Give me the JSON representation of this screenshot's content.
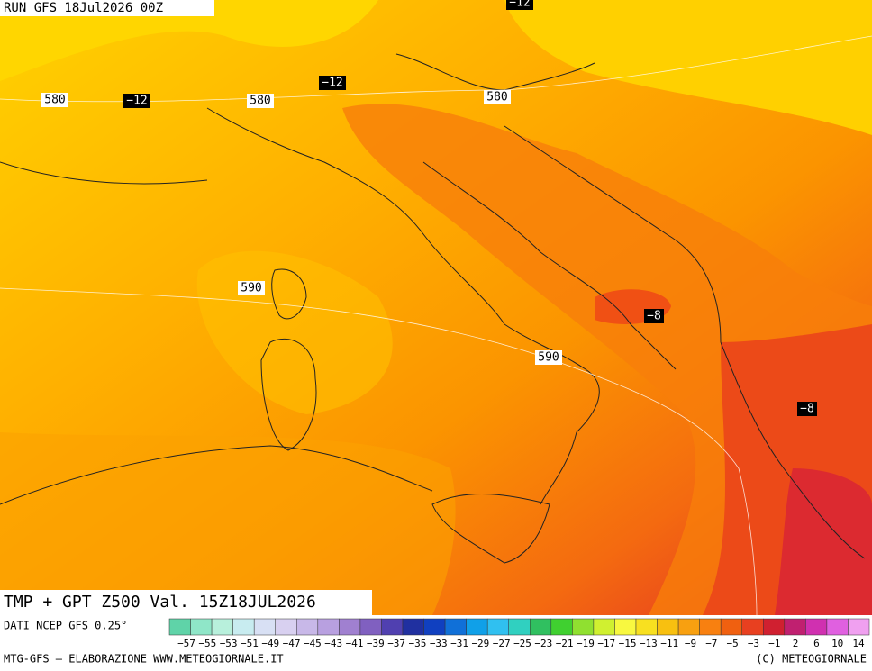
{
  "header": {
    "run": "RUN GFS 18Jul2026 00Z"
  },
  "map": {
    "title": "TMP + GPT Z500 Val. 15Z18JUL2026",
    "contour_labels": [
      {
        "text": "−12",
        "kind": "temperature"
      },
      {
        "text": "580",
        "kind": "height"
      },
      {
        "text": "−12",
        "kind": "temperature"
      },
      {
        "text": "580",
        "kind": "height"
      },
      {
        "text": "−12",
        "kind": "temperature"
      },
      {
        "text": "580",
        "kind": "height"
      },
      {
        "text": "590",
        "kind": "height"
      },
      {
        "text": "−8",
        "kind": "temperature"
      },
      {
        "text": "590",
        "kind": "height"
      },
      {
        "text": "−8",
        "kind": "temperature"
      }
    ]
  },
  "colorbar": {
    "source": "DATI NCEP GFS 0.25°",
    "labels": [
      "−57",
      "−55",
      "−53",
      "−51",
      "−49",
      "−47",
      "−45",
      "−43",
      "−41",
      "−39",
      "−37",
      "−35",
      "−33",
      "−31",
      "−29",
      "−27",
      "−25",
      "−23",
      "−21",
      "−19",
      "−17",
      "−15",
      "−13",
      "−11",
      "−9",
      "−7",
      "−5",
      "−3",
      "−1",
      "2",
      "6",
      "10",
      "14"
    ],
    "colors": [
      "#5fd3a8",
      "#8fe6c8",
      "#b8f0dc",
      "#c8ecf0",
      "#d8e0f4",
      "#d8d0f0",
      "#c8b8e8",
      "#b8a0e0",
      "#a080d0",
      "#8060c0",
      "#5040b0",
      "#2030a0",
      "#1040c0",
      "#1070d8",
      "#10a0e8",
      "#30c0f0",
      "#30d0c0",
      "#30c060",
      "#40d030",
      "#90e030",
      "#d0f030",
      "#f8f840",
      "#f8e020",
      "#f8c010",
      "#f8a010",
      "#f88010",
      "#f06010",
      "#e84020",
      "#d02030",
      "#c02070",
      "#d030b0",
      "#e060e0",
      "#f0a0f0"
    ]
  },
  "footer": {
    "left": "MTG-GFS – ELABORAZIONE WWW.METEOGIORNALE.IT",
    "right": "(C) METEOGIORNALE"
  }
}
